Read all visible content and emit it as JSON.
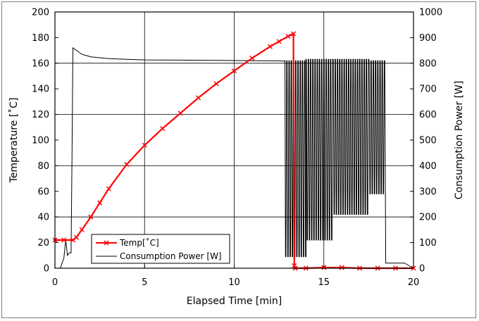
{
  "chart_data": {
    "type": "line",
    "xlabel": "Elapsed Time [min]",
    "ylabel": "Temperature [˚C]",
    "y2label": "Consumption Power [W]",
    "xlim": [
      0,
      20
    ],
    "ylim": [
      0,
      200
    ],
    "y2lim": [
      0,
      1000
    ],
    "grid": true,
    "legend_position": "bottom-left",
    "x_ticks": [
      "0",
      "5",
      "10",
      "15",
      "20"
    ],
    "y_ticks": [
      "0",
      "20",
      "40",
      "60",
      "80",
      "100",
      "120",
      "140",
      "160",
      "180",
      "200"
    ],
    "y2_ticks": [
      "0",
      "100",
      "200",
      "300",
      "400",
      "500",
      "600",
      "700",
      "800",
      "900",
      "1000"
    ],
    "series": [
      {
        "name": "Temp[˚C]",
        "axis": "left",
        "color": "#ff0000",
        "marker": "x",
        "x": [
          0,
          0.5,
          1.0,
          1.2,
          1.5,
          2.0,
          2.5,
          3.0,
          4.0,
          5.0,
          6.0,
          7.0,
          8.0,
          9.0,
          10.0,
          11.0,
          12.0,
          12.5,
          13.0,
          13.3,
          13.35,
          13.4,
          14.0,
          15.0,
          16.0,
          17.0,
          18.0,
          19.0,
          20.0
        ],
        "y": [
          22,
          22,
          22,
          24,
          30,
          40,
          51,
          62,
          81,
          96,
          109,
          121,
          133,
          144,
          154,
          164,
          173,
          177,
          181,
          183,
          2,
          0,
          0,
          0.5,
          0.5,
          0,
          0,
          0,
          0
        ]
      },
      {
        "name": "Consumption Power [W]",
        "axis": "right",
        "color": "#000000",
        "marker": "none",
        "x": [
          0,
          0.3,
          0.5,
          0.6,
          0.7,
          0.8,
          0.9,
          0.95,
          1.0,
          1.2,
          1.5,
          2.0,
          3.0,
          4.0,
          5.0,
          7.0,
          9.0,
          11.0,
          12.5,
          12.8
        ],
        "y": [
          0,
          0,
          40,
          110,
          50,
          60,
          60,
          430,
          860,
          850,
          835,
          825,
          818,
          815,
          813,
          812,
          811,
          810,
          809,
          808
        ],
        "oscillation": [
          {
            "x_range": [
              12.8,
              14.0
            ],
            "high": 810,
            "low": 45
          },
          {
            "x_range": [
              14.0,
              15.5
            ],
            "high": 815,
            "low": 110
          },
          {
            "x_range": [
              15.5,
              17.5
            ],
            "high": 815,
            "low": 210
          },
          {
            "x_range": [
              17.5,
              18.4
            ],
            "high": 810,
            "low": 290
          }
        ],
        "tail": {
          "x": [
            18.45,
            19.5,
            20.0
          ],
          "y": [
            20,
            20,
            0
          ]
        }
      }
    ]
  }
}
